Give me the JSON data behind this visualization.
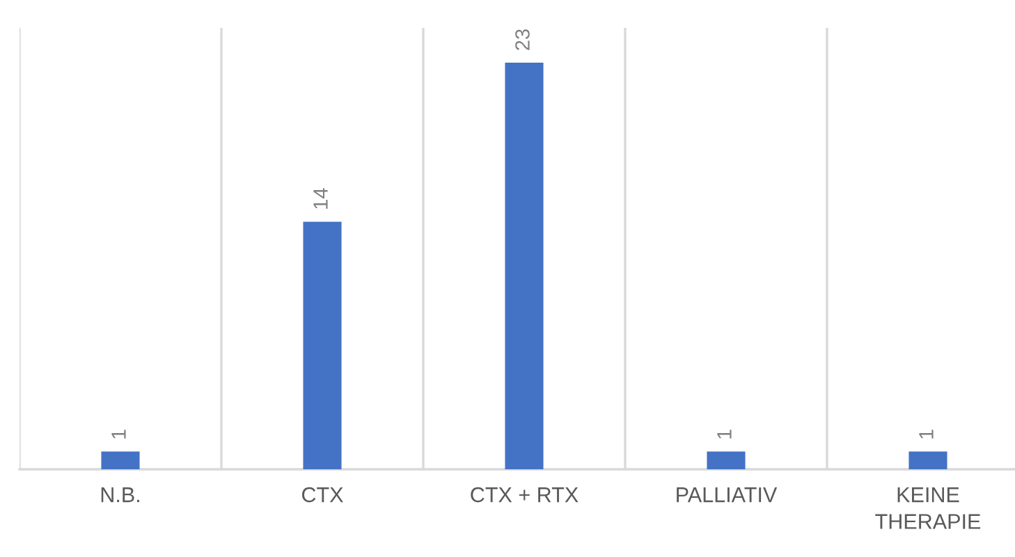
{
  "chart_data": {
    "type": "bar",
    "categories": [
      "N.B.",
      "CTX",
      "CTX + RTX",
      "PALLIATIV",
      "KEINE THERAPIE"
    ],
    "values": [
      1,
      14,
      23,
      1,
      1
    ],
    "color": "#4472c4",
    "data_labels": true,
    "grid": "x",
    "legend": false
  }
}
